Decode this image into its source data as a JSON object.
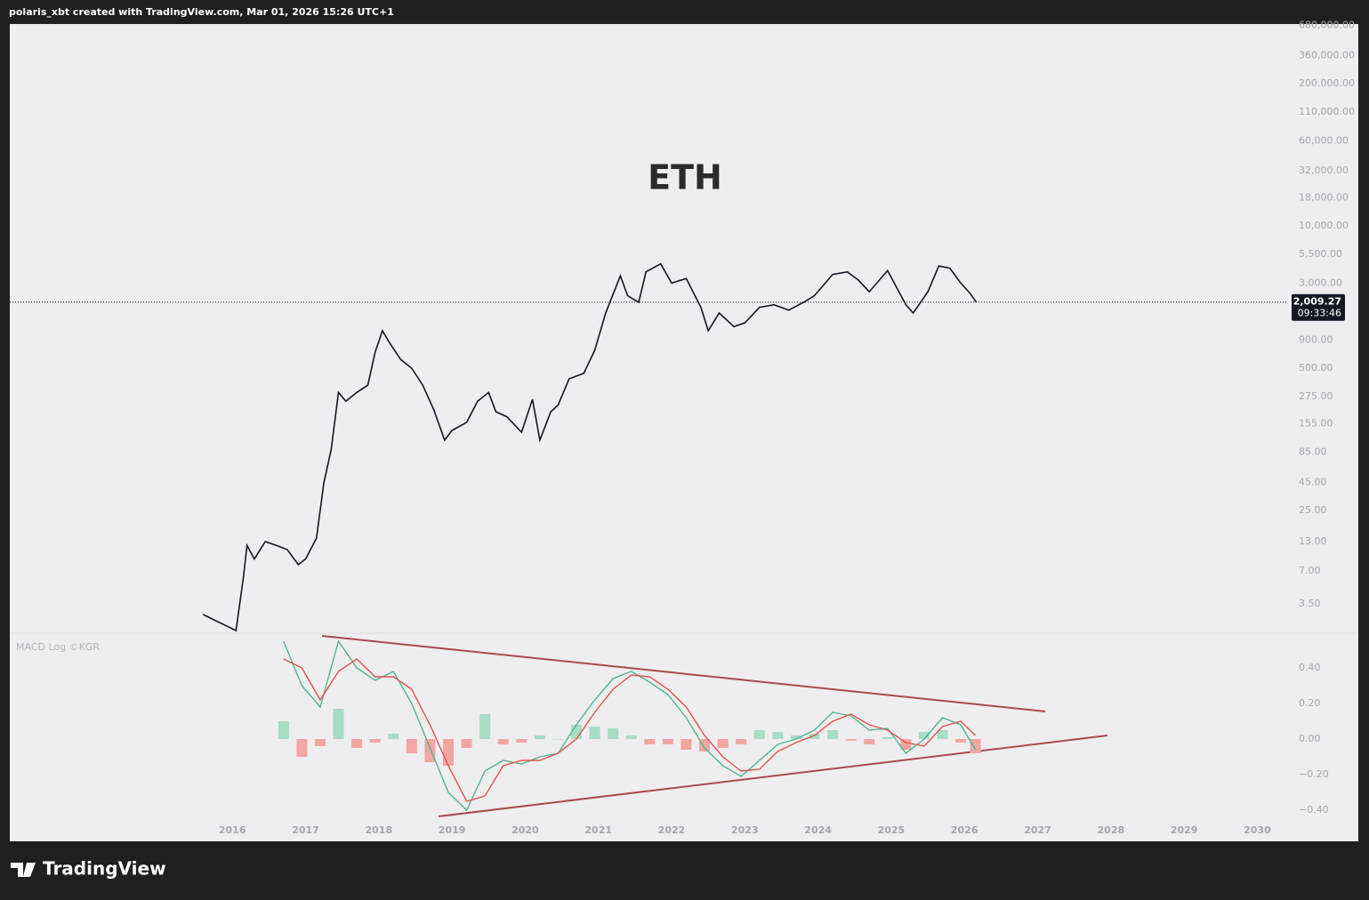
{
  "header": {
    "text": "polaris_xbt created with TradingView.com, Mar 01, 2026 15:26 UTC+1"
  },
  "footer": {
    "brand": "TradingView"
  },
  "chart_data": [
    {
      "type": "line",
      "title": "ETH",
      "log_scale": true,
      "xlim": [
        2012.96,
        2030.42
      ],
      "ylim": [
        1.89,
        701000
      ],
      "yticks": [
        {
          "value": 680000,
          "label": "680,000.00"
        },
        {
          "value": 360000,
          "label": "360,000.00"
        },
        {
          "value": 200000,
          "label": "200,000.00"
        },
        {
          "value": 110000,
          "label": "110,000.00"
        },
        {
          "value": 60000,
          "label": "60,000.00"
        },
        {
          "value": 32000,
          "label": "32,000.00"
        },
        {
          "value": 18000,
          "label": "18,000.00"
        },
        {
          "value": 10000,
          "label": "10,000.00"
        },
        {
          "value": 5500,
          "label": "5,500.00"
        },
        {
          "value": 3000,
          "label": "3,000.00"
        },
        {
          "value": 900,
          "label": "900.00"
        },
        {
          "value": 500,
          "label": "500.00"
        },
        {
          "value": 275,
          "label": "275.00"
        },
        {
          "value": 155,
          "label": "155.00"
        },
        {
          "value": 85,
          "label": "85.00"
        },
        {
          "value": 45,
          "label": "45.00"
        },
        {
          "value": 25,
          "label": "25.00"
        },
        {
          "value": 13,
          "label": "13.00"
        },
        {
          "value": 7,
          "label": "7.00"
        },
        {
          "value": 3.5,
          "label": "3.50"
        }
      ],
      "last_price": {
        "value": 2009.27,
        "label": "2,009.27"
      },
      "countdown": "09:33:46",
      "x": [
        2015.6,
        2016.05,
        2016.15,
        2016.2,
        2016.3,
        2016.45,
        2016.6,
        2016.75,
        2016.9,
        2017.0,
        2017.15,
        2017.25,
        2017.35,
        2017.45,
        2017.55,
        2017.7,
        2017.85,
        2017.95,
        2018.05,
        2018.15,
        2018.3,
        2018.45,
        2018.6,
        2018.75,
        2018.9,
        2019.0,
        2019.2,
        2019.35,
        2019.5,
        2019.6,
        2019.75,
        2019.95,
        2020.1,
        2020.2,
        2020.35,
        2020.45,
        2020.6,
        2020.8,
        2020.95,
        2021.1,
        2021.3,
        2021.4,
        2021.55,
        2021.65,
        2021.85,
        2022.0,
        2022.2,
        2022.4,
        2022.5,
        2022.65,
        2022.85,
        2023.0,
        2023.2,
        2023.4,
        2023.6,
        2023.8,
        2023.95,
        2024.2,
        2024.4,
        2024.55,
        2024.7,
        2024.95,
        2025.2,
        2025.3,
        2025.5,
        2025.65,
        2025.8,
        2025.95,
        2026.08,
        2026.16
      ],
      "series": [
        {
          "color": "#131722",
          "values": [
            2.8,
            2.0,
            6,
            12,
            9,
            13,
            12,
            11,
            8,
            9,
            14,
            45,
            90,
            300,
            250,
            300,
            350,
            700,
            1100,
            850,
            600,
            500,
            350,
            210,
            110,
            135,
            160,
            250,
            300,
            200,
            180,
            130,
            260,
            110,
            200,
            230,
            400,
            450,
            730,
            1600,
            3500,
            2300,
            2000,
            3800,
            4500,
            3000,
            3300,
            1800,
            1100,
            1600,
            1200,
            1300,
            1800,
            1900,
            1700,
            2000,
            2300,
            3600,
            3800,
            3200,
            2500,
            3900,
            1900,
            1600,
            2500,
            4300,
            4100,
            3000,
            2400,
            2009.27
          ]
        }
      ]
    },
    {
      "type": "macd",
      "title": "MACD Log ©KGR",
      "xlim": [
        2012.96,
        2030.42
      ],
      "xticks": [
        2016,
        2017,
        2018,
        2019,
        2020,
        2021,
        2022,
        2023,
        2024,
        2025,
        2026,
        2027,
        2028,
        2029,
        2030
      ],
      "ylim": [
        -0.575,
        0.595
      ],
      "yticks": [
        {
          "value": 0.4,
          "label": "0.40"
        },
        {
          "value": 0.2,
          "label": "0.20"
        },
        {
          "value": 0,
          "label": "0.00"
        },
        {
          "value": -0.2,
          "label": "−0.20"
        },
        {
          "value": -0.4,
          "label": "−0.40"
        }
      ],
      "x": [
        2016.7,
        2016.95,
        2017.2,
        2017.45,
        2017.7,
        2017.95,
        2018.2,
        2018.45,
        2018.7,
        2018.95,
        2019.2,
        2019.45,
        2019.7,
        2019.95,
        2020.2,
        2020.45,
        2020.7,
        2020.95,
        2021.2,
        2021.45,
        2021.7,
        2021.95,
        2022.2,
        2022.45,
        2022.7,
        2022.95,
        2023.2,
        2023.45,
        2023.7,
        2023.95,
        2024.2,
        2024.45,
        2024.7,
        2024.95,
        2025.2,
        2025.45,
        2025.7,
        2025.95,
        2026.15
      ],
      "series": [
        {
          "color": "#4fb58f",
          "values": [
            0.55,
            0.3,
            0.18,
            0.55,
            0.4,
            0.33,
            0.38,
            0.2,
            -0.05,
            -0.3,
            -0.4,
            -0.18,
            -0.12,
            -0.14,
            -0.1,
            -0.08,
            0.08,
            0.22,
            0.34,
            0.38,
            0.32,
            0.25,
            0.12,
            -0.05,
            -0.15,
            -0.21,
            -0.12,
            -0.03,
            0.0,
            0.05,
            0.15,
            0.13,
            0.05,
            0.06,
            -0.08,
            0.0,
            0.12,
            0.08,
            -0.06
          ]
        },
        {
          "color": "#e0534f",
          "values": [
            0.45,
            0.4,
            0.22,
            0.38,
            0.45,
            0.35,
            0.35,
            0.28,
            0.08,
            -0.15,
            -0.35,
            -0.32,
            -0.15,
            -0.12,
            -0.12,
            -0.08,
            0.0,
            0.15,
            0.28,
            0.36,
            0.35,
            0.28,
            0.18,
            0.02,
            -0.1,
            -0.18,
            -0.17,
            -0.07,
            -0.02,
            0.02,
            0.1,
            0.14,
            0.08,
            0.05,
            -0.02,
            -0.04,
            0.07,
            0.1,
            0.02
          ]
        }
      ],
      "histogram": {
        "up_color": "#a7dcc5",
        "down_color": "#f3a5a3",
        "values": [
          0.1,
          -0.1,
          -0.04,
          0.17,
          -0.05,
          -0.02,
          0.03,
          -0.08,
          -0.13,
          -0.15,
          -0.05,
          0.14,
          -0.03,
          -0.02,
          0.02,
          0.0,
          0.08,
          0.07,
          0.06,
          0.02,
          -0.03,
          -0.03,
          -0.06,
          -0.07,
          -0.05,
          -0.03,
          0.05,
          0.04,
          0.02,
          0.03,
          0.05,
          -0.01,
          -0.03,
          0.01,
          -0.06,
          0.04,
          0.05,
          -0.02,
          -0.08
        ]
      }
    }
  ]
}
